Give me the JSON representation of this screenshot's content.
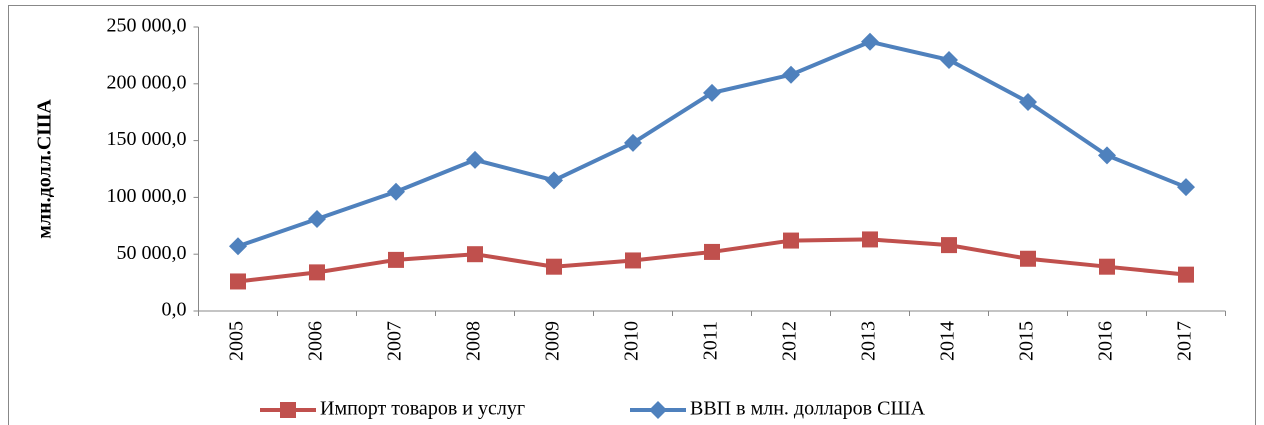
{
  "chart_data": {
    "type": "line",
    "y_label": "млн.долл.США",
    "categories": [
      "2005",
      "2006",
      "2007",
      "2008",
      "2009",
      "2010",
      "2011",
      "2012",
      "2013",
      "2014",
      "2015",
      "2016",
      "2017"
    ],
    "series": [
      {
        "name": "Импорт товаров и услуг",
        "color": "#c0504d",
        "marker": "square",
        "values": [
          26000,
          34000,
          45000,
          50000,
          39000,
          44500,
          52000,
          62000,
          63000,
          58000,
          46000,
          39000,
          32000
        ]
      },
      {
        "name": "ВВП в млн. долларов США",
        "color": "#4f81bd",
        "marker": "diamond",
        "values": [
          57000,
          81000,
          105000,
          133000,
          115000,
          148000,
          192000,
          208000,
          237000,
          221000,
          184000,
          137000,
          109000
        ]
      }
    ],
    "ylim": [
      0,
      250000
    ],
    "yticks": [
      {
        "value": 0,
        "label": "0,0"
      },
      {
        "value": 50000,
        "label": "50 000,0"
      },
      {
        "value": 100000,
        "label": "100 000,0"
      },
      {
        "value": 150000,
        "label": "150 000,0"
      },
      {
        "value": 200000,
        "label": "200 000,0"
      },
      {
        "value": 250000,
        "label": "250 000,0"
      }
    ],
    "grid": false,
    "legend": "bottom"
  }
}
